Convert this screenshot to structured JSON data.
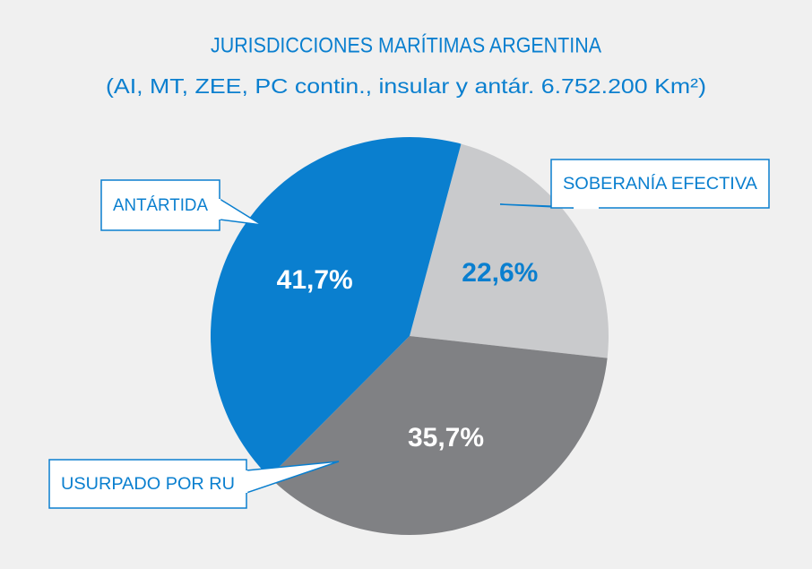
{
  "chart_data": {
    "type": "pie",
    "title": "JURISDICCIONES MARÍTIMAS ARGENTINA",
    "subtitle": "(AI, MT, ZEE, PC contin., insular y antár. 6.752.200 Km²)",
    "categories": [
      "SOBERANÍA EFECTIVA",
      "USURPADO POR RU",
      "ANTÁRTIDA"
    ],
    "values": [
      22.6,
      35.7,
      41.7
    ],
    "value_labels": [
      "22,6%",
      "35,7%",
      "41,7%"
    ],
    "colors": [
      "#c9cacc",
      "#808184",
      "#0a7fcf"
    ],
    "value_label_colors": [
      "#0a7fcf",
      "#ffffff",
      "#ffffff"
    ]
  }
}
